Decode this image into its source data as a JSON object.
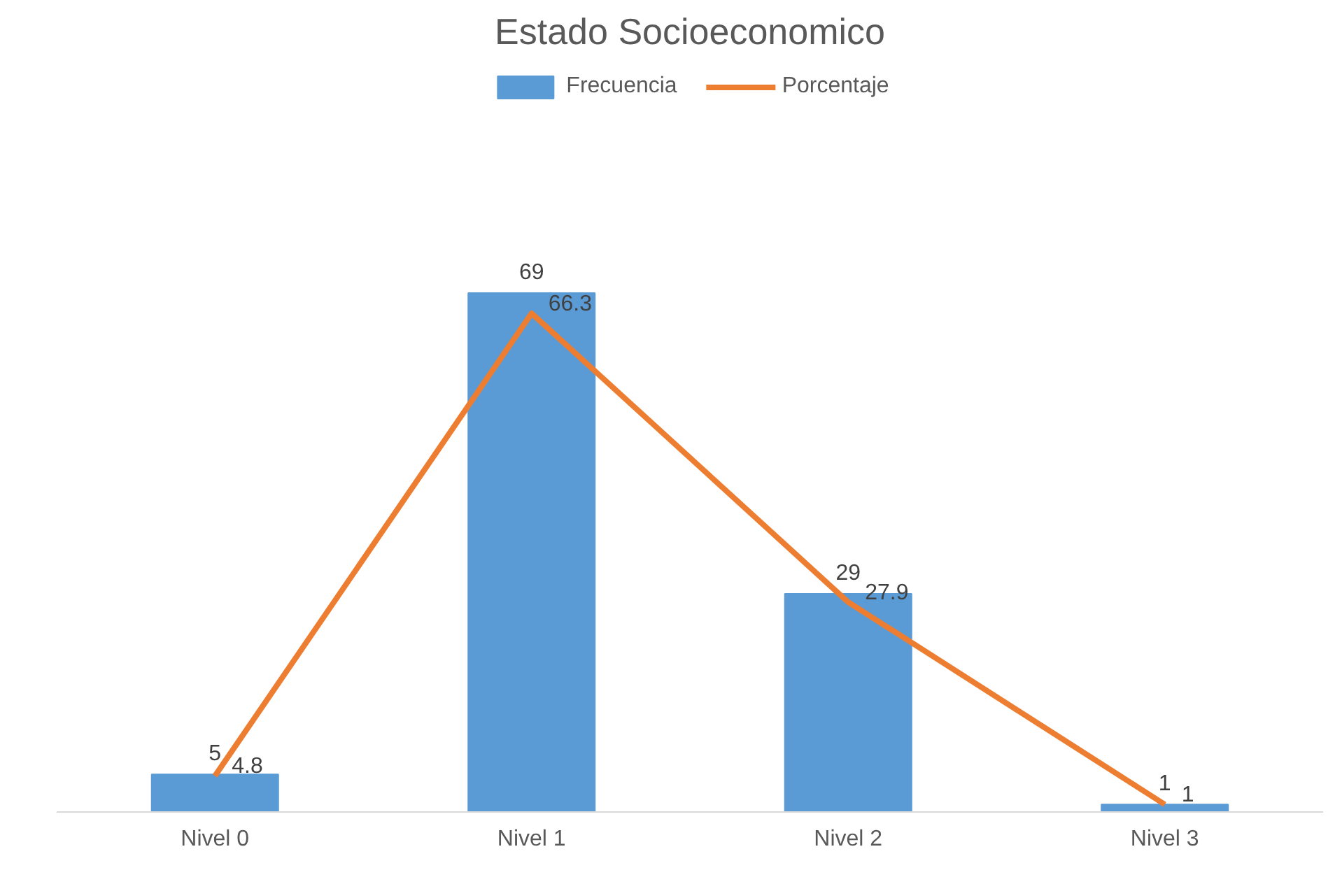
{
  "chart_data": {
    "type": "bar",
    "title": "Estado Socioeconomico",
    "categories": [
      "Nivel 0",
      "Nivel 1",
      "Nivel 2",
      "Nivel 3"
    ],
    "series": [
      {
        "name": "Frecuencia",
        "color": "#5b9bd5",
        "values": [
          5,
          69,
          29,
          1
        ]
      },
      {
        "name": "Porcentaje",
        "type": "line",
        "color": "#ed7d31",
        "values": [
          4.8,
          66.3,
          27.9,
          1
        ]
      }
    ],
    "data_labels": true,
    "legend": "top",
    "grid": false
  }
}
